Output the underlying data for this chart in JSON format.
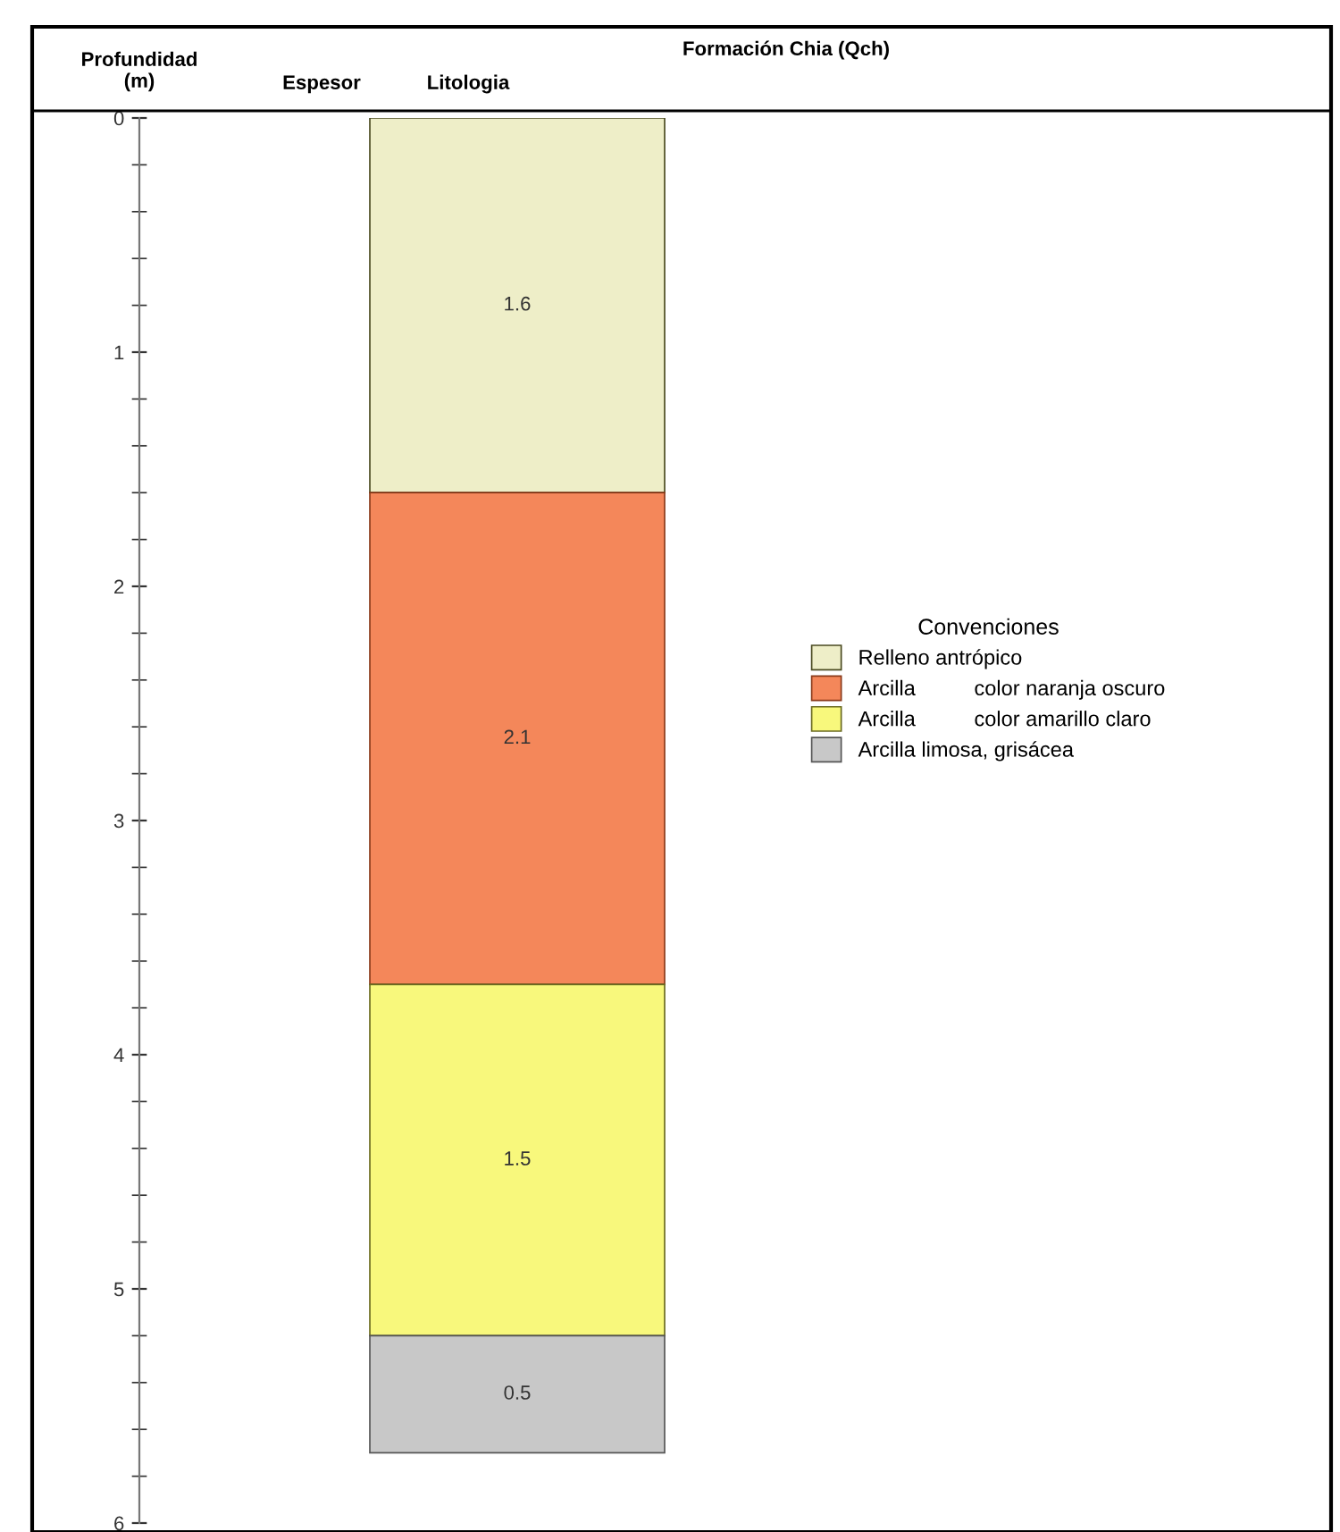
{
  "chart_data": {
    "type": "bar",
    "stacked": true,
    "title": "Formación Chia (Qch)",
    "ylabel": "Profundidad\n(m)",
    "annotations": [
      "Espesor",
      "Litologia"
    ],
    "legend_title": "Convenciones",
    "legend": "right",
    "data_labels": true,
    "grid": false,
    "categories": [
      null
    ],
    "series": [
      {
        "name": "Relleno antrópico",
        "color": "#eeeec8",
        "values": [
          1.6
        ]
      },
      {
        "name": "Arcilla          color naranja oscuro",
        "color": "#f4875a",
        "values": [
          2.1
        ]
      },
      {
        "name": "Arcilla          color amarillo claro",
        "color": "#f8f87c",
        "values": [
          1.5
        ]
      },
      {
        "name": "Arcilla limosa, grisácea",
        "color": "#c8c8c8",
        "values": [
          0.5
        ]
      }
    ],
    "ylim": [
      6,
      0
    ],
    "yticks": [
      0,
      1,
      2,
      3,
      4,
      5,
      6
    ]
  }
}
